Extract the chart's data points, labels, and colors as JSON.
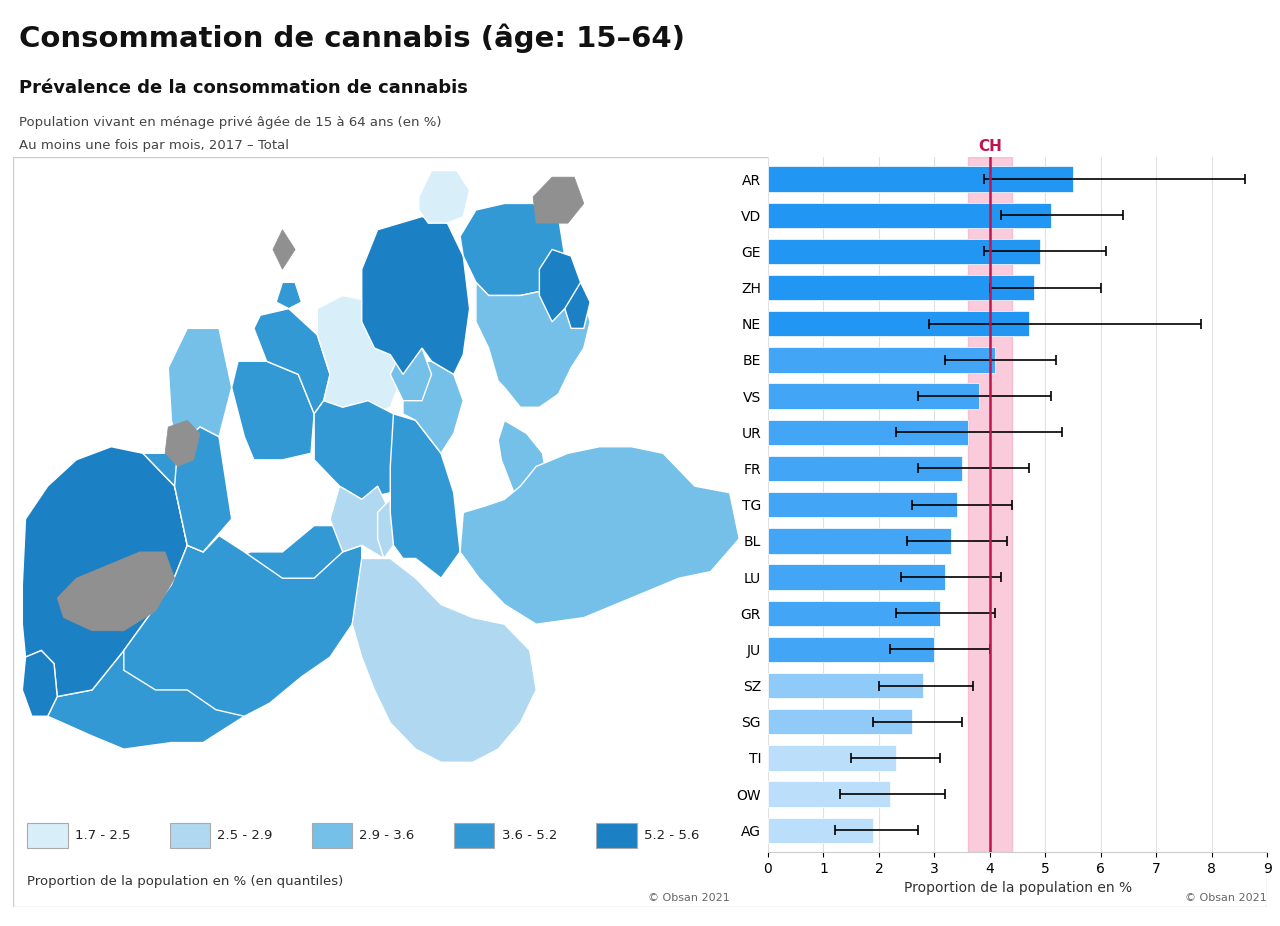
{
  "title": "Consommation de cannabis (âge: 15–64)",
  "subtitle": "Prévalence de la consommation de cannabis",
  "subtitle2": "Population vivant en ménage privé âgée de 15 à 64 ans (en %)",
  "subtitle3": "Au moins une fois par mois, 2017 – Total",
  "copyright": "© Obsan 2021",
  "bar_labels": [
    "AR",
    "VD",
    "GE",
    "ZH",
    "NE",
    "BE",
    "VS",
    "UR",
    "FR",
    "TG",
    "BL",
    "LU",
    "GR",
    "JU",
    "SZ",
    "SG",
    "TI",
    "OW",
    "AG"
  ],
  "bar_values": [
    5.5,
    5.1,
    4.9,
    4.8,
    4.7,
    4.1,
    3.8,
    3.6,
    3.5,
    3.4,
    3.3,
    3.2,
    3.1,
    3.0,
    2.8,
    2.6,
    2.3,
    2.2,
    1.9
  ],
  "error_low": [
    3.9,
    4.2,
    3.9,
    4.0,
    2.9,
    3.2,
    2.7,
    2.3,
    2.7,
    2.6,
    2.5,
    2.4,
    2.3,
    2.2,
    2.0,
    1.9,
    1.5,
    1.3,
    1.2
  ],
  "error_high": [
    8.6,
    6.4,
    6.1,
    6.0,
    7.8,
    5.2,
    5.1,
    5.3,
    4.7,
    4.4,
    4.3,
    4.2,
    4.1,
    4.0,
    3.7,
    3.5,
    3.1,
    3.2,
    2.7
  ],
  "bar_colors": [
    "#2196F3",
    "#2196F3",
    "#2196F3",
    "#2196F3",
    "#2196F3",
    "#42A5F5",
    "#42A5F5",
    "#42A5F5",
    "#42A5F5",
    "#42A5F5",
    "#42A5F5",
    "#42A5F5",
    "#42A5F5",
    "#42A5F5",
    "#90CAF9",
    "#90CAF9",
    "#BBDEFB",
    "#BBDEFB",
    "#BBDEFB"
  ],
  "ch_line": 4.0,
  "ch_band_low": 3.6,
  "ch_band_high": 4.4,
  "xlim": [
    0,
    9
  ],
  "xticks": [
    0,
    1,
    2,
    3,
    4,
    5,
    6,
    7,
    8,
    9
  ],
  "xlabel": "Proportion de la population en %",
  "legend_colors": [
    "#D6EAF8",
    "#A9CCE3",
    "#7FB3D3",
    "#2980B9",
    "#1A5276"
  ],
  "legend_labels_display": [
    "1.7 - 2.5",
    "2.5 - 2.9",
    "2.9 - 3.6",
    "3.6 - 5.2",
    "5.2 - 5.6"
  ],
  "legend_map_colors": [
    "#D6EAF8",
    "#AED6F1",
    "#5DADE2",
    "#2E86C1",
    "#1A5276"
  ],
  "legend_text": "Proportion de la population en % (en quantiles)",
  "background_color": "#ffffff"
}
